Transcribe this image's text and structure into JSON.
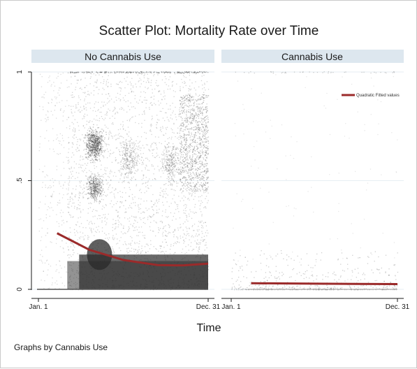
{
  "chart_data": {
    "type": "scatter",
    "title": "Scatter Plot: Mortality Rate over Time",
    "xlabel": "Time",
    "ylabel": "",
    "ylim": [
      0,
      1
    ],
    "y_ticks": [
      {
        "value": 0,
        "label": "0"
      },
      {
        "value": 0.5,
        "label": ".5"
      },
      {
        "value": 1,
        "label": "1"
      }
    ],
    "x_ticks": [
      "Jan. 1",
      "Dec. 31"
    ],
    "grid": "horizontal",
    "legend": {
      "label": "Quadratic Fitted values",
      "placement": "top-right"
    },
    "note": "Graphs by Cannabis Use",
    "colors": {
      "fit_line": "#9b2a2a",
      "points": "#3a3a3a",
      "strip": "#dde7ef",
      "grid": "#e6eef3"
    },
    "panels": [
      {
        "label": "No Cannabis Use",
        "fit": [
          {
            "x": 0.11,
            "y": 0.258
          },
          {
            "x": 0.3,
            "y": 0.182
          },
          {
            "x": 0.5,
            "y": 0.135
          },
          {
            "x": 0.7,
            "y": 0.112
          },
          {
            "x": 0.85,
            "y": 0.11
          },
          {
            "x": 1.0,
            "y": 0.118
          }
        ]
      },
      {
        "label": "Cannabis Use",
        "fit": [
          {
            "x": 0.12,
            "y": 0.028
          },
          {
            "x": 0.5,
            "y": 0.026
          },
          {
            "x": 1.0,
            "y": 0.024
          }
        ]
      }
    ]
  }
}
